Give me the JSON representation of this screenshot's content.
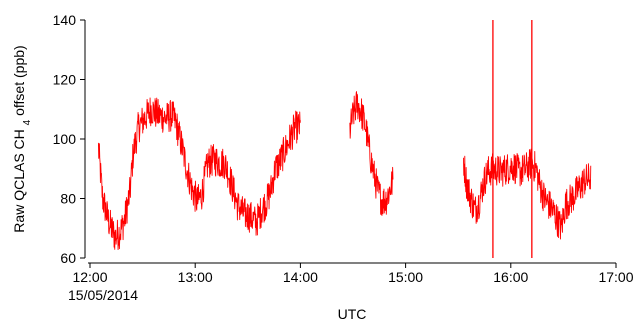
{
  "chart_data": {
    "type": "line",
    "xlabel": "UTC",
    "ylabel_main": "Raw QCLAS CH",
    "ylabel_sub": "4",
    "ylabel_tail": " offset (ppb)",
    "date_label": "15/05/2014",
    "xlim": [
      12.0,
      17.0
    ],
    "ylim": [
      60,
      140
    ],
    "x_ticks": [
      12,
      13,
      14,
      15,
      16,
      17
    ],
    "x_tick_labels": [
      "12:00",
      "13:00",
      "14:00",
      "15:00",
      "16:00",
      "17:00"
    ],
    "y_ticks": [
      60,
      80,
      100,
      120,
      140
    ],
    "y_tick_labels": [
      "60",
      "80",
      "100",
      "120",
      "140"
    ],
    "series_color": "#ff0000",
    "series": [
      {
        "segments": [
          {
            "x": [
              12.08,
              12.12,
              12.18,
              12.24,
              12.29,
              12.33,
              12.38,
              12.41,
              12.46,
              12.52,
              12.58,
              12.65,
              12.72,
              12.78,
              12.82,
              12.87,
              12.92,
              12.97,
              13.02,
              13.06,
              13.12,
              13.18,
              13.24,
              13.28,
              13.32,
              13.36,
              13.4,
              13.46,
              13.52,
              13.58,
              13.63,
              13.68,
              13.72,
              13.76,
              13.8,
              13.85,
              13.9,
              13.95,
              14.0
            ],
            "y": [
              97,
              80,
              72,
              67,
              69,
              73,
              82,
              95,
              104,
              107,
              110,
              108,
              107,
              108,
              105,
              98,
              90,
              83,
              79,
              81,
              92,
              93,
              92,
              92,
              88,
              83,
              78,
              75,
              74,
              72,
              76,
              79,
              83,
              90,
              92,
              96,
              100,
              104,
              104
            ]
          },
          {
            "x": [
              14.47,
              14.5,
              14.54,
              14.58,
              14.62,
              14.66,
              14.7,
              14.74,
              14.78,
              14.82,
              14.86,
              14.88
            ],
            "y": [
              103,
              108,
              112,
              109,
              104,
              95,
              88,
              82,
              79,
              80,
              84,
              86
            ]
          },
          {
            "x": [
              15.55,
              15.58,
              15.62,
              15.66,
              15.7,
              15.74,
              15.78,
              15.84,
              15.9,
              15.96,
              16.02,
              16.08,
              16.14,
              16.2,
              16.24,
              16.28,
              16.32,
              16.36,
              16.4,
              16.44,
              16.48,
              16.52,
              16.58,
              16.64,
              16.7,
              16.76
            ],
            "y": [
              93,
              85,
              80,
              76,
              79,
              85,
              89,
              90,
              89,
              90,
              91,
              89,
              90,
              92,
              90,
              84,
              80,
              78,
              76,
              73,
              70,
              78,
              80,
              83,
              86,
              87
            ]
          }
        ]
      }
    ],
    "spikes_x": [
      15.83,
      16.2
    ]
  }
}
